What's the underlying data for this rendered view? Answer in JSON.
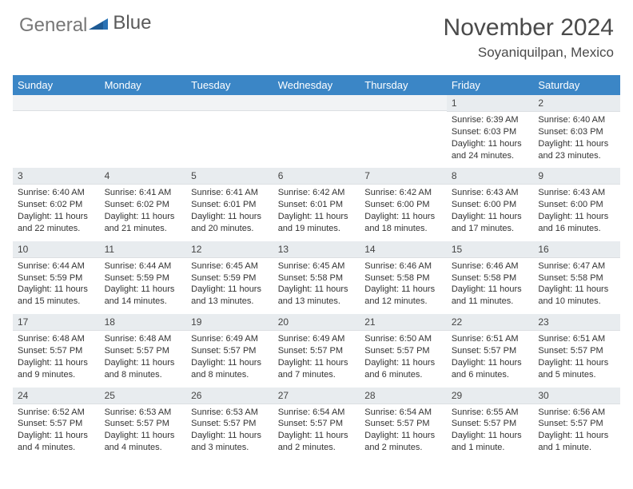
{
  "logo": {
    "part1": "General",
    "part2": "Blue"
  },
  "title": "November 2024",
  "location": "Soyaniquilpan, Mexico",
  "colors": {
    "header_bg": "#3b86c6",
    "daynum_bg": "#e8ecef",
    "text": "#333333"
  },
  "dow": [
    "Sunday",
    "Monday",
    "Tuesday",
    "Wednesday",
    "Thursday",
    "Friday",
    "Saturday"
  ],
  "weeks": [
    [
      null,
      null,
      null,
      null,
      null,
      {
        "n": "1",
        "sr": "Sunrise: 6:39 AM",
        "ss": "Sunset: 6:03 PM",
        "d1": "Daylight: 11 hours",
        "d2": "and 24 minutes."
      },
      {
        "n": "2",
        "sr": "Sunrise: 6:40 AM",
        "ss": "Sunset: 6:03 PM",
        "d1": "Daylight: 11 hours",
        "d2": "and 23 minutes."
      }
    ],
    [
      {
        "n": "3",
        "sr": "Sunrise: 6:40 AM",
        "ss": "Sunset: 6:02 PM",
        "d1": "Daylight: 11 hours",
        "d2": "and 22 minutes."
      },
      {
        "n": "4",
        "sr": "Sunrise: 6:41 AM",
        "ss": "Sunset: 6:02 PM",
        "d1": "Daylight: 11 hours",
        "d2": "and 21 minutes."
      },
      {
        "n": "5",
        "sr": "Sunrise: 6:41 AM",
        "ss": "Sunset: 6:01 PM",
        "d1": "Daylight: 11 hours",
        "d2": "and 20 minutes."
      },
      {
        "n": "6",
        "sr": "Sunrise: 6:42 AM",
        "ss": "Sunset: 6:01 PM",
        "d1": "Daylight: 11 hours",
        "d2": "and 19 minutes."
      },
      {
        "n": "7",
        "sr": "Sunrise: 6:42 AM",
        "ss": "Sunset: 6:00 PM",
        "d1": "Daylight: 11 hours",
        "d2": "and 18 minutes."
      },
      {
        "n": "8",
        "sr": "Sunrise: 6:43 AM",
        "ss": "Sunset: 6:00 PM",
        "d1": "Daylight: 11 hours",
        "d2": "and 17 minutes."
      },
      {
        "n": "9",
        "sr": "Sunrise: 6:43 AM",
        "ss": "Sunset: 6:00 PM",
        "d1": "Daylight: 11 hours",
        "d2": "and 16 minutes."
      }
    ],
    [
      {
        "n": "10",
        "sr": "Sunrise: 6:44 AM",
        "ss": "Sunset: 5:59 PM",
        "d1": "Daylight: 11 hours",
        "d2": "and 15 minutes."
      },
      {
        "n": "11",
        "sr": "Sunrise: 6:44 AM",
        "ss": "Sunset: 5:59 PM",
        "d1": "Daylight: 11 hours",
        "d2": "and 14 minutes."
      },
      {
        "n": "12",
        "sr": "Sunrise: 6:45 AM",
        "ss": "Sunset: 5:59 PM",
        "d1": "Daylight: 11 hours",
        "d2": "and 13 minutes."
      },
      {
        "n": "13",
        "sr": "Sunrise: 6:45 AM",
        "ss": "Sunset: 5:58 PM",
        "d1": "Daylight: 11 hours",
        "d2": "and 13 minutes."
      },
      {
        "n": "14",
        "sr": "Sunrise: 6:46 AM",
        "ss": "Sunset: 5:58 PM",
        "d1": "Daylight: 11 hours",
        "d2": "and 12 minutes."
      },
      {
        "n": "15",
        "sr": "Sunrise: 6:46 AM",
        "ss": "Sunset: 5:58 PM",
        "d1": "Daylight: 11 hours",
        "d2": "and 11 minutes."
      },
      {
        "n": "16",
        "sr": "Sunrise: 6:47 AM",
        "ss": "Sunset: 5:58 PM",
        "d1": "Daylight: 11 hours",
        "d2": "and 10 minutes."
      }
    ],
    [
      {
        "n": "17",
        "sr": "Sunrise: 6:48 AM",
        "ss": "Sunset: 5:57 PM",
        "d1": "Daylight: 11 hours",
        "d2": "and 9 minutes."
      },
      {
        "n": "18",
        "sr": "Sunrise: 6:48 AM",
        "ss": "Sunset: 5:57 PM",
        "d1": "Daylight: 11 hours",
        "d2": "and 8 minutes."
      },
      {
        "n": "19",
        "sr": "Sunrise: 6:49 AM",
        "ss": "Sunset: 5:57 PM",
        "d1": "Daylight: 11 hours",
        "d2": "and 8 minutes."
      },
      {
        "n": "20",
        "sr": "Sunrise: 6:49 AM",
        "ss": "Sunset: 5:57 PM",
        "d1": "Daylight: 11 hours",
        "d2": "and 7 minutes."
      },
      {
        "n": "21",
        "sr": "Sunrise: 6:50 AM",
        "ss": "Sunset: 5:57 PM",
        "d1": "Daylight: 11 hours",
        "d2": "and 6 minutes."
      },
      {
        "n": "22",
        "sr": "Sunrise: 6:51 AM",
        "ss": "Sunset: 5:57 PM",
        "d1": "Daylight: 11 hours",
        "d2": "and 6 minutes."
      },
      {
        "n": "23",
        "sr": "Sunrise: 6:51 AM",
        "ss": "Sunset: 5:57 PM",
        "d1": "Daylight: 11 hours",
        "d2": "and 5 minutes."
      }
    ],
    [
      {
        "n": "24",
        "sr": "Sunrise: 6:52 AM",
        "ss": "Sunset: 5:57 PM",
        "d1": "Daylight: 11 hours",
        "d2": "and 4 minutes."
      },
      {
        "n": "25",
        "sr": "Sunrise: 6:53 AM",
        "ss": "Sunset: 5:57 PM",
        "d1": "Daylight: 11 hours",
        "d2": "and 4 minutes."
      },
      {
        "n": "26",
        "sr": "Sunrise: 6:53 AM",
        "ss": "Sunset: 5:57 PM",
        "d1": "Daylight: 11 hours",
        "d2": "and 3 minutes."
      },
      {
        "n": "27",
        "sr": "Sunrise: 6:54 AM",
        "ss": "Sunset: 5:57 PM",
        "d1": "Daylight: 11 hours",
        "d2": "and 2 minutes."
      },
      {
        "n": "28",
        "sr": "Sunrise: 6:54 AM",
        "ss": "Sunset: 5:57 PM",
        "d1": "Daylight: 11 hours",
        "d2": "and 2 minutes."
      },
      {
        "n": "29",
        "sr": "Sunrise: 6:55 AM",
        "ss": "Sunset: 5:57 PM",
        "d1": "Daylight: 11 hours",
        "d2": "and 1 minute."
      },
      {
        "n": "30",
        "sr": "Sunrise: 6:56 AM",
        "ss": "Sunset: 5:57 PM",
        "d1": "Daylight: 11 hours",
        "d2": "and 1 minute."
      }
    ]
  ]
}
